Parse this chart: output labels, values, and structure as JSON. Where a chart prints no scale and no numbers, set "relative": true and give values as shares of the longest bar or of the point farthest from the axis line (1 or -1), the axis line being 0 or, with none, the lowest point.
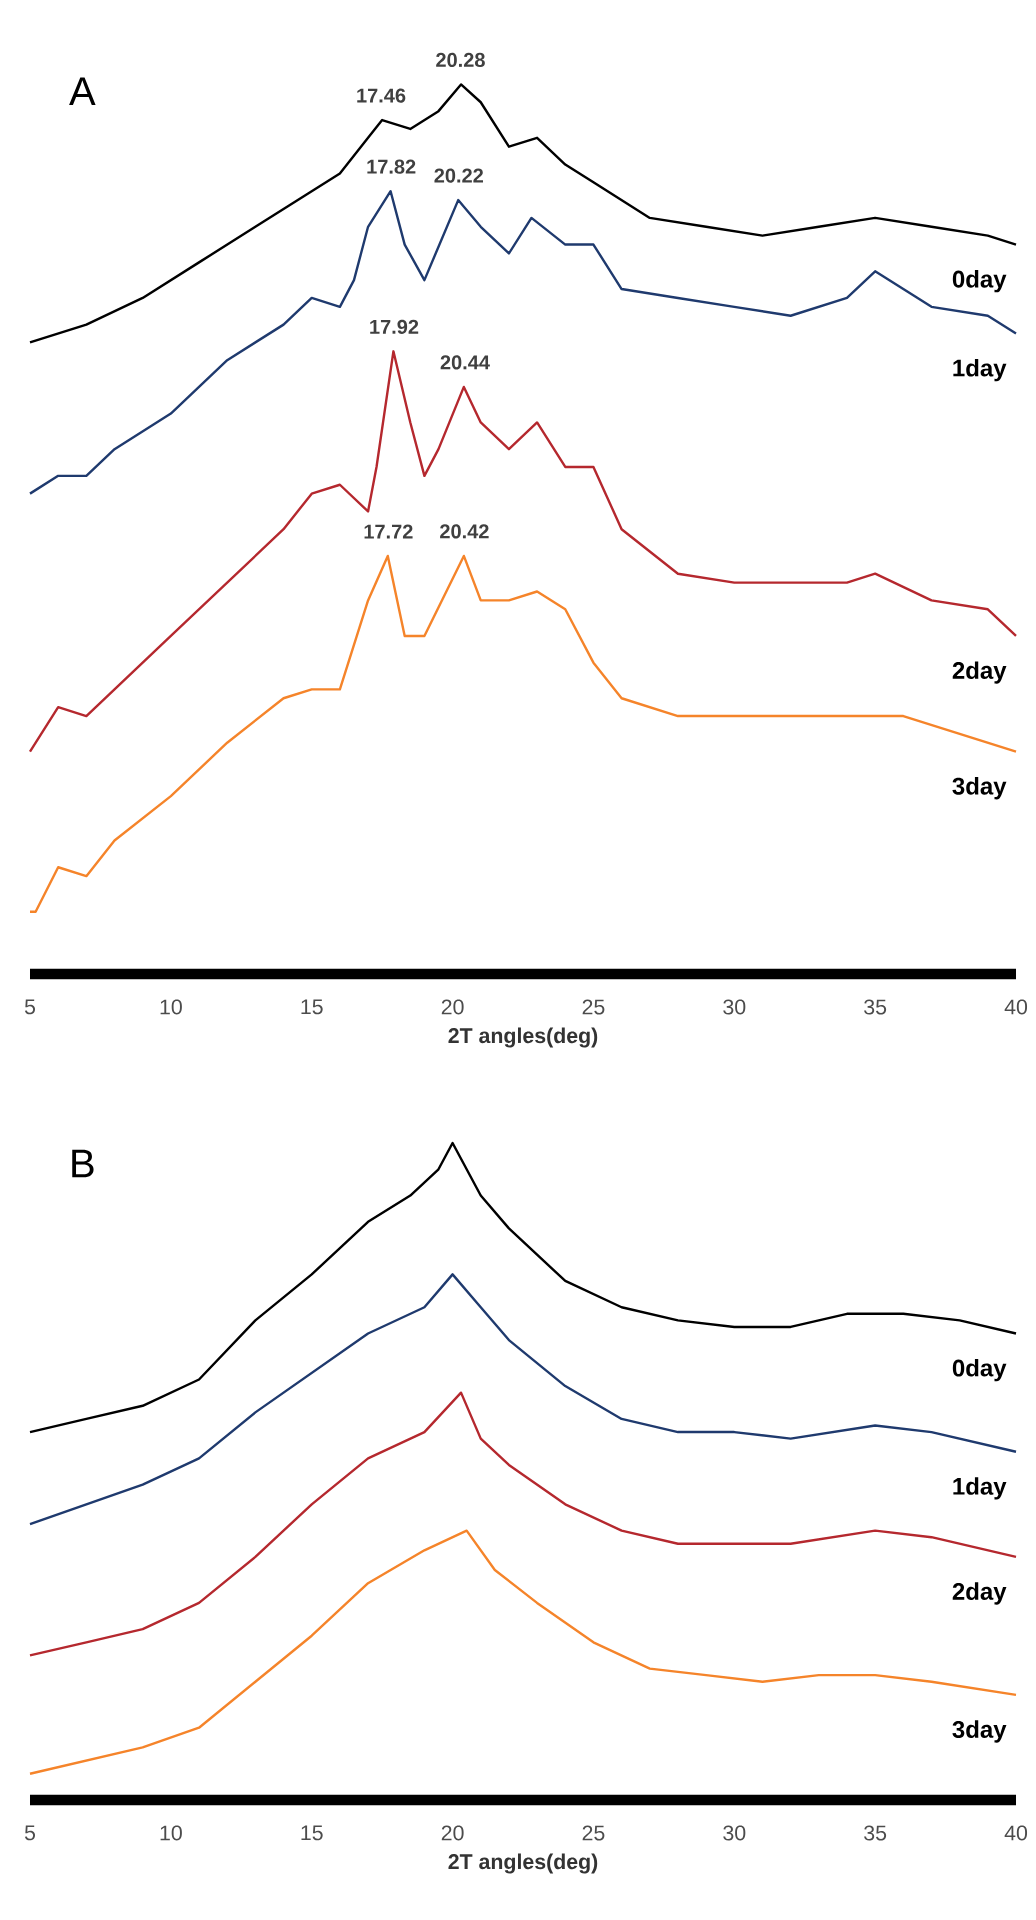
{
  "chart_data": [
    {
      "type": "line",
      "title": "A",
      "xlabel": "2T angles(deg)",
      "xlim": [
        5,
        40
      ],
      "xticks": [
        5,
        10,
        15,
        20,
        25,
        30,
        35,
        40
      ],
      "relative": true,
      "series": [
        {
          "name": "0day",
          "color": "#000000",
          "x": [
            5,
            7,
            9,
            11,
            13,
            15,
            16,
            17,
            17.5,
            18.5,
            19.5,
            20.3,
            21,
            22,
            23,
            24,
            25,
            27,
            29,
            31,
            33,
            35,
            37,
            39,
            40
          ],
          "values": [
            0.71,
            0.73,
            0.76,
            0.8,
            0.84,
            0.88,
            0.9,
            0.94,
            0.96,
            0.95,
            0.97,
            1.0,
            0.98,
            0.93,
            0.94,
            0.91,
            0.89,
            0.85,
            0.84,
            0.83,
            0.84,
            0.85,
            0.84,
            0.83,
            0.82
          ]
        },
        {
          "name": "1day",
          "color": "#1f3a6e",
          "x": [
            5,
            6,
            7,
            8,
            10,
            12,
            14,
            15,
            16,
            16.5,
            17,
            17.8,
            18.3,
            19,
            20.2,
            21,
            22,
            22.8,
            24,
            25,
            26,
            28,
            30,
            32,
            34,
            35,
            37,
            39,
            40
          ],
          "values": [
            0.54,
            0.56,
            0.56,
            0.59,
            0.63,
            0.69,
            0.73,
            0.76,
            0.75,
            0.78,
            0.84,
            0.88,
            0.82,
            0.78,
            0.87,
            0.84,
            0.81,
            0.85,
            0.82,
            0.82,
            0.77,
            0.76,
            0.75,
            0.74,
            0.76,
            0.79,
            0.75,
            0.74,
            0.72
          ]
        },
        {
          "name": "2day",
          "color": "#b5282e",
          "x": [
            5,
            6,
            7,
            8,
            10,
            12,
            14,
            15,
            16,
            17,
            17.3,
            17.9,
            18.5,
            19,
            19.5,
            20.4,
            21,
            22,
            23,
            24,
            25,
            26,
            28,
            30,
            32,
            34,
            35,
            37,
            39,
            40
          ],
          "values": [
            0.25,
            0.3,
            0.29,
            0.32,
            0.38,
            0.44,
            0.5,
            0.54,
            0.55,
            0.52,
            0.57,
            0.7,
            0.62,
            0.56,
            0.59,
            0.66,
            0.62,
            0.59,
            0.62,
            0.57,
            0.57,
            0.5,
            0.45,
            0.44,
            0.44,
            0.44,
            0.45,
            0.42,
            0.41,
            0.38
          ]
        },
        {
          "name": "3day",
          "color": "#f5842a",
          "x": [
            5,
            5.2,
            6,
            7,
            8,
            10,
            12,
            14,
            15,
            16,
            17,
            17.7,
            18.3,
            19,
            20.4,
            21,
            22,
            23,
            24,
            25,
            26,
            28,
            30,
            32,
            34,
            36,
            38,
            40
          ],
          "values": [
            0.07,
            0.07,
            0.12,
            0.11,
            0.15,
            0.2,
            0.26,
            0.31,
            0.32,
            0.32,
            0.42,
            0.47,
            0.38,
            0.38,
            0.47,
            0.42,
            0.42,
            0.43,
            0.41,
            0.35,
            0.31,
            0.29,
            0.29,
            0.29,
            0.29,
            0.29,
            0.27,
            0.25
          ]
        }
      ],
      "annotations": [
        {
          "text": "17.46",
          "x": 17.46,
          "y": 0.96
        },
        {
          "text": "20.28",
          "x": 20.28,
          "y": 1.0
        },
        {
          "text": "17.82",
          "x": 17.82,
          "y": 0.88
        },
        {
          "text": "20.22",
          "x": 20.22,
          "y": 0.87
        },
        {
          "text": "17.92",
          "x": 17.92,
          "y": 0.7
        },
        {
          "text": "20.44",
          "x": 20.44,
          "y": 0.66
        },
        {
          "text": "17.72",
          "x": 17.72,
          "y": 0.47
        },
        {
          "text": "20.42",
          "x": 20.42,
          "y": 0.47
        }
      ]
    },
    {
      "type": "line",
      "title": "B",
      "xlabel": "2T angles(deg)",
      "xlim": [
        5,
        40
      ],
      "xticks": [
        5,
        10,
        15,
        20,
        25,
        30,
        35,
        40
      ],
      "relative": true,
      "series": [
        {
          "name": "0day",
          "color": "#000000",
          "x": [
            5,
            7,
            9,
            11,
            13,
            15,
            17,
            18.5,
            19.5,
            20,
            21,
            22,
            24,
            26,
            28,
            30,
            32,
            34,
            36,
            38,
            40
          ],
          "values": [
            0.56,
            0.58,
            0.6,
            0.64,
            0.73,
            0.8,
            0.88,
            0.92,
            0.96,
            1.0,
            0.92,
            0.87,
            0.79,
            0.75,
            0.73,
            0.72,
            0.72,
            0.74,
            0.74,
            0.73,
            0.71
          ]
        },
        {
          "name": "1day",
          "color": "#1f3a6e",
          "x": [
            5,
            7,
            9,
            11,
            13,
            15,
            17,
            19,
            20,
            21,
            22,
            24,
            26,
            28,
            30,
            32,
            35,
            37,
            40
          ],
          "values": [
            0.42,
            0.45,
            0.48,
            0.52,
            0.59,
            0.65,
            0.71,
            0.75,
            0.8,
            0.75,
            0.7,
            0.63,
            0.58,
            0.56,
            0.56,
            0.55,
            0.57,
            0.56,
            0.53
          ]
        },
        {
          "name": "2day",
          "color": "#b5282e",
          "x": [
            5,
            7,
            9,
            11,
            13,
            15,
            17,
            19,
            20.3,
            21,
            22,
            24,
            26,
            28,
            30,
            32,
            35,
            37,
            40
          ],
          "values": [
            0.22,
            0.24,
            0.26,
            0.3,
            0.37,
            0.45,
            0.52,
            0.56,
            0.62,
            0.55,
            0.51,
            0.45,
            0.41,
            0.39,
            0.39,
            0.39,
            0.41,
            0.4,
            0.37
          ]
        },
        {
          "name": "3day",
          "color": "#f5842a",
          "x": [
            5,
            7,
            9,
            11,
            13,
            15,
            17,
            19,
            20.5,
            21.5,
            23,
            25,
            27,
            29,
            31,
            33,
            35,
            37,
            40
          ],
          "values": [
            0.04,
            0.06,
            0.08,
            0.11,
            0.18,
            0.25,
            0.33,
            0.38,
            0.41,
            0.35,
            0.3,
            0.24,
            0.2,
            0.19,
            0.18,
            0.19,
            0.19,
            0.18,
            0.16
          ]
        }
      ]
    }
  ]
}
